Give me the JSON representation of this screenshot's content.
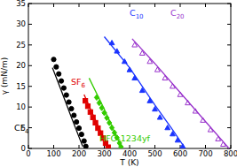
{
  "chart_data": {
    "type": "scatter",
    "x_label": "T (K)",
    "y_label": "γ (mN/m)",
    "xlim": [
      0,
      800
    ],
    "xticks": [
      0,
      100,
      200,
      300,
      400,
      500,
      600,
      700,
      800
    ],
    "ylim": [
      0,
      35
    ],
    "yticks": [
      0,
      5,
      10,
      15,
      20,
      25,
      30,
      35
    ],
    "grid": false,
    "series": [
      {
        "name": "CF4",
        "type": "scatter",
        "color": "#000000",
        "marker": "circle",
        "x": [
          100,
          110,
          120,
          130,
          140,
          150,
          160,
          170,
          180,
          190,
          200,
          210,
          220,
          227
        ],
        "values": [
          21.5,
          19.7,
          18.0,
          16.3,
          14.6,
          12.9,
          11.2,
          9.6,
          8.0,
          6.4,
          4.9,
          3.4,
          1.8,
          0.5
        ]
      },
      {
        "type": "line",
        "color": "#000000",
        "x": [
          95,
          130,
          170,
          205,
          215
        ],
        "values": [
          19.5,
          14,
          7.5,
          2,
          0.5
        ]
      },
      {
        "name": "SF6",
        "type": "scatter",
        "color": "#e00000",
        "marker": "square",
        "x": [
          225,
          235,
          245,
          255,
          265,
          275,
          285,
          295,
          305,
          315
        ],
        "values": [
          11.5,
          10.2,
          8.8,
          7.5,
          6.2,
          4.9,
          3.7,
          2.5,
          1.3,
          0.3
        ]
      },
      {
        "type": "line",
        "color": "#e00000",
        "x": [
          220,
          260,
          300,
          318
        ],
        "values": [
          13,
          7.5,
          2.2,
          0
        ]
      },
      {
        "name": "HFO-1234yf",
        "type": "scatter",
        "color": "#33cc00",
        "marker": "diamond",
        "x": [
          270,
          280,
          290,
          300,
          310,
          320,
          330,
          340,
          350,
          360,
          366
        ],
        "values": [
          12.3,
          11.0,
          9.8,
          8.6,
          7.4,
          6.2,
          5.0,
          3.8,
          2.6,
          1.3,
          0.4
        ]
      },
      {
        "type": "line",
        "color": "#33cc00",
        "x": [
          240,
          300,
          340,
          370
        ],
        "values": [
          17,
          9.5,
          4,
          0
        ]
      },
      {
        "name": "C10",
        "type": "scatter",
        "color": "#1a33ff",
        "marker": "triangle",
        "x": [
          330,
          350,
          380,
          400,
          420,
          450,
          480,
          500,
          520,
          550,
          570,
          590,
          610
        ],
        "values": [
          25.5,
          23.5,
          21,
          19,
          17,
          14,
          11.5,
          9.5,
          7.5,
          5,
          3.5,
          2,
          0.5
        ]
      },
      {
        "type": "line",
        "color": "#1a33ff",
        "x": [
          300,
          400,
          500,
          570,
          620
        ],
        "values": [
          27,
          19.5,
          10.5,
          4.5,
          0
        ]
      },
      {
        "name": "C20",
        "type": "scatter",
        "color": "#9933cc",
        "marker": "triangle-open",
        "x": [
          420,
          450,
          480,
          510,
          540,
          570,
          600,
          630,
          660,
          690,
          720,
          750,
          770
        ],
        "values": [
          25,
          23,
          21,
          19,
          17,
          15,
          13,
          11,
          9,
          6.8,
          4.5,
          2.3,
          1
        ]
      },
      {
        "type": "line",
        "color": "#9933cc",
        "x": [
          410,
          500,
          600,
          700,
          793
        ],
        "values": [
          26.5,
          20.5,
          13.5,
          6.5,
          0
        ]
      }
    ]
  }
}
